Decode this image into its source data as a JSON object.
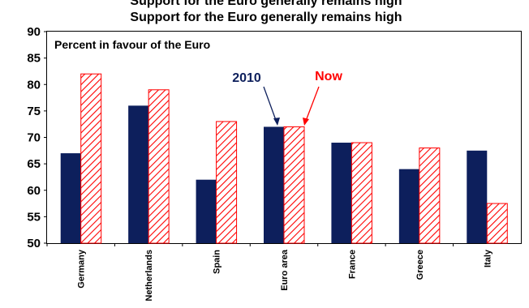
{
  "chart_data": {
    "type": "bar",
    "title_top": "Support for the Euro generally remains high",
    "title": "Support for the Euro generally remains high",
    "inset_label": "Percent in favour of the Euro",
    "categories": [
      "Germany",
      "Netherlands",
      "Spain",
      "Euro area",
      "France",
      "Greece",
      "Italy"
    ],
    "series": [
      {
        "name": "2010",
        "color": "#0d1f5c",
        "pattern": "solid",
        "values": [
          67,
          76,
          62,
          72,
          69,
          64,
          67.5
        ]
      },
      {
        "name": "Now",
        "color": "#ff0000",
        "pattern": "hatched",
        "values": [
          82,
          79,
          73,
          72,
          69,
          68,
          57.5
        ]
      }
    ],
    "ylim": [
      50,
      90
    ],
    "yticks": [
      50,
      55,
      60,
      65,
      70,
      75,
      80,
      85,
      90
    ],
    "grid": false,
    "legend": "annotations above Euro area"
  }
}
